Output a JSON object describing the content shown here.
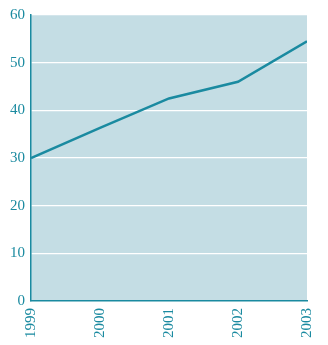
{
  "chart_data": {
    "type": "line",
    "categories": [
      "1999",
      "2000",
      "2001",
      "2002",
      "2003"
    ],
    "values": [
      30,
      36.3,
      42.5,
      46,
      54.5
    ],
    "color": "#1a8aa0",
    "ylim": [
      0,
      60
    ],
    "yticks": [
      0,
      10,
      20,
      30,
      40,
      50,
      60
    ],
    "grid": true
  }
}
